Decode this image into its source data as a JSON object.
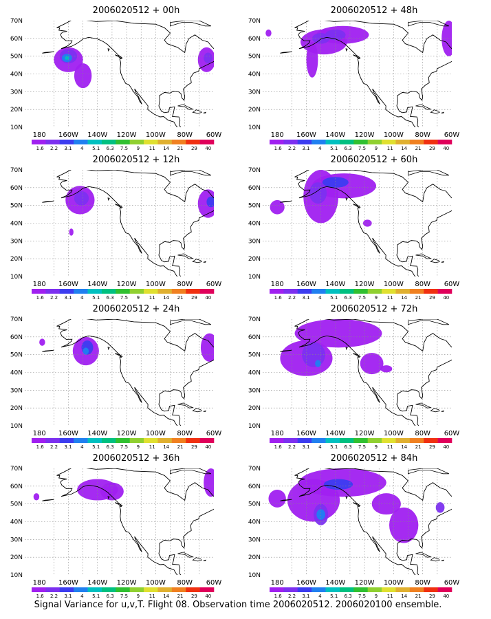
{
  "lat_labels": [
    "70N",
    "60N",
    "50N",
    "40N",
    "30N",
    "20N",
    "10N"
  ],
  "lon_labels": [
    "180",
    "160W",
    "140W",
    "120W",
    "100W",
    "80W",
    "60W"
  ],
  "scale_labels": [
    "1.6",
    "2.2",
    "3.1",
    "4",
    "5.1",
    "6.3",
    "7.5",
    "9",
    "11",
    "14",
    "21",
    "29",
    "40"
  ],
  "scale_colors": [
    "#a020f0",
    "#7c30f0",
    "#3c3cf0",
    "#2080f0",
    "#00c0c0",
    "#00c080",
    "#30c030",
    "#90d030",
    "#e0e030",
    "#e0b030",
    "#f08020",
    "#f03010",
    "#e0005a"
  ],
  "panels": [
    {
      "title": "2006020512 + 00h"
    },
    {
      "title": "2006020512 + 48h"
    },
    {
      "title": "2006020512 + 12h"
    },
    {
      "title": "2006020512 + 60h"
    },
    {
      "title": "2006020512 + 24h"
    },
    {
      "title": "2006020512 + 72h"
    },
    {
      "title": "2006020512 + 36h"
    },
    {
      "title": "2006020512 + 84h"
    }
  ],
  "caption": "Signal Variance for u,v,T. Flight 08. Observation time 2006020512. 2006020100 ensemble."
}
